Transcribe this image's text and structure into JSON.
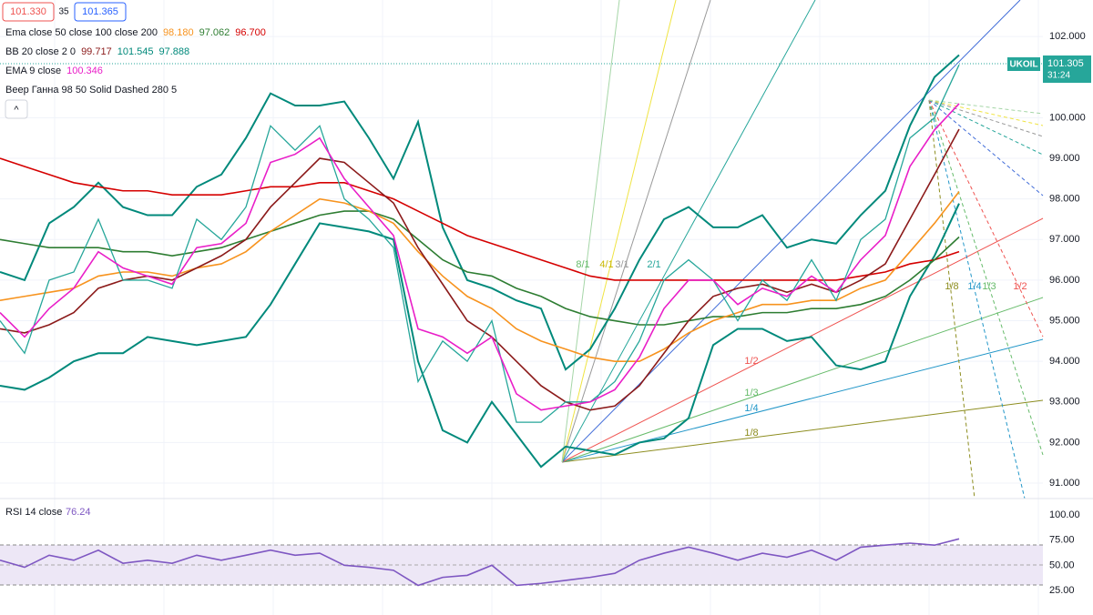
{
  "header": {
    "bid": "101.330",
    "spread": "35",
    "ask": "101.365"
  },
  "indicator_legend": [
    {
      "label": "Ema close 50 close 100 close 200",
      "readings": [
        "98.180",
        "97.062",
        "96.700"
      ],
      "colors": [
        "#f7931e",
        "#2e7d32",
        "#d50000"
      ]
    },
    {
      "label": "BB 20 close 2 0",
      "readings": [
        "99.717",
        "101.545",
        "97.888"
      ],
      "colors": [
        "#8b1a1a",
        "#00897b",
        "#00897b"
      ]
    },
    {
      "label": "EMA 9 close",
      "readings": [
        "100.346"
      ],
      "colors": [
        "#e91ec8"
      ]
    },
    {
      "label": "Веер Ганна 98 50 Solid Dashed 280 5",
      "readings": [],
      "colors": []
    }
  ],
  "price_tag": {
    "symbol": "UKOIL",
    "price": "101.305",
    "countdown": "31:24"
  },
  "gann_fan": {
    "labels": [
      "1/8",
      "1/4",
      "1/3",
      "1/2",
      "2/1",
      "3/1",
      "4/1",
      "8/1"
    ],
    "second_labels": [
      "1/8",
      "1/4",
      "1/3",
      "1/2"
    ]
  },
  "chart_data": [
    {
      "type": "line",
      "categories": [
        null,
        null,
        null,
        null,
        null,
        null,
        null,
        null,
        null,
        null,
        null,
        null,
        null,
        null,
        null,
        null,
        null,
        null,
        null,
        null,
        null,
        null,
        null,
        null,
        null,
        null,
        null,
        null,
        null,
        null,
        null,
        null,
        null,
        null,
        null,
        null,
        null,
        null,
        null,
        null
      ],
      "ylim": [
        90.62,
        102.9
      ],
      "grid": true,
      "yticks": [
        {
          "value": 91,
          "label": "91.000"
        },
        {
          "value": 92,
          "label": "92.000"
        },
        {
          "value": 93,
          "label": "93.000"
        },
        {
          "value": 94,
          "label": "94.000"
        },
        {
          "value": 95,
          "label": "95.000"
        },
        {
          "value": 96,
          "label": "96.000"
        },
        {
          "value": 97,
          "label": "97.000"
        },
        {
          "value": 98,
          "label": "98.000"
        },
        {
          "value": 99,
          "label": "99.000"
        },
        {
          "value": 100,
          "label": "100.000"
        },
        {
          "value": 102,
          "label": "102.000"
        }
      ],
      "series": [
        {
          "name": "BB upper",
          "color": "#00897b",
          "values": [
            96.2,
            96.0,
            97.4,
            97.8,
            98.4,
            97.8,
            97.6,
            97.6,
            98.3,
            98.6,
            99.5,
            100.6,
            100.3,
            100.3,
            100.4,
            99.5,
            98.5,
            99.9,
            97.3,
            96.0,
            95.8,
            95.5,
            95.3,
            93.8,
            94.3,
            95.3,
            96.5,
            97.5,
            97.8,
            97.3,
            97.3,
            97.6,
            96.8,
            97.0,
            96.9,
            97.6,
            98.2,
            99.8,
            101.0,
            101.545
          ]
        },
        {
          "name": "BB lower",
          "color": "#00897b",
          "values": [
            93.4,
            93.3,
            93.6,
            94.0,
            94.2,
            94.2,
            94.6,
            94.5,
            94.4,
            94.5,
            94.6,
            95.4,
            96.4,
            97.4,
            97.3,
            97.2,
            97.0,
            94.0,
            92.3,
            92.0,
            93.0,
            92.2,
            91.4,
            91.9,
            91.8,
            91.7,
            92.0,
            92.1,
            92.6,
            94.4,
            94.8,
            94.8,
            94.5,
            94.6,
            93.9,
            93.8,
            94.0,
            95.6,
            96.6,
            97.888
          ]
        },
        {
          "name": "EMA 200",
          "color": "#d50000",
          "values": [
            99.0,
            98.8,
            98.6,
            98.4,
            98.3,
            98.2,
            98.2,
            98.1,
            98.1,
            98.1,
            98.2,
            98.3,
            98.3,
            98.4,
            98.4,
            98.2,
            98.0,
            97.7,
            97.4,
            97.1,
            96.9,
            96.7,
            96.5,
            96.3,
            96.1,
            96.0,
            96.0,
            96.0,
            96.0,
            96.0,
            96.0,
            96.0,
            96.0,
            96.0,
            96.0,
            96.1,
            96.2,
            96.4,
            96.5,
            96.7
          ]
        },
        {
          "name": "EMA 100",
          "color": "#2e7d32",
          "values": [
            97.0,
            96.9,
            96.8,
            96.8,
            96.8,
            96.7,
            96.7,
            96.6,
            96.7,
            96.8,
            97.0,
            97.2,
            97.4,
            97.6,
            97.7,
            97.7,
            97.5,
            97.0,
            96.5,
            96.2,
            96.1,
            95.8,
            95.6,
            95.3,
            95.1,
            95.0,
            94.9,
            94.9,
            95.0,
            95.1,
            95.1,
            95.2,
            95.2,
            95.3,
            95.3,
            95.4,
            95.6,
            96.0,
            96.5,
            97.062
          ]
        },
        {
          "name": "EMA 50",
          "color": "#f7931e",
          "values": [
            95.5,
            95.6,
            95.7,
            95.8,
            96.1,
            96.2,
            96.2,
            96.1,
            96.3,
            96.4,
            96.7,
            97.2,
            97.6,
            98.0,
            97.9,
            97.7,
            97.4,
            96.7,
            96.1,
            95.6,
            95.3,
            94.8,
            94.5,
            94.3,
            94.1,
            94.0,
            94.0,
            94.3,
            94.7,
            95.0,
            95.2,
            95.4,
            95.4,
            95.5,
            95.5,
            95.8,
            96.0,
            96.7,
            97.4,
            98.18
          ]
        },
        {
          "name": "BB basis",
          "color": "#8b1a1a",
          "values": [
            94.8,
            94.7,
            94.9,
            95.2,
            95.8,
            96.0,
            96.1,
            96.0,
            96.3,
            96.6,
            97.0,
            97.8,
            98.4,
            99.0,
            98.9,
            98.4,
            97.9,
            96.8,
            95.9,
            95.0,
            94.6,
            94.0,
            93.4,
            93.0,
            92.8,
            92.9,
            93.4,
            94.2,
            95.0,
            95.6,
            95.8,
            95.9,
            95.7,
            95.9,
            95.7,
            96.0,
            96.4,
            97.5,
            98.6,
            99.717
          ]
        },
        {
          "name": "Close",
          "color": "#26a69a",
          "values": [
            95.0,
            94.2,
            96.0,
            96.2,
            97.5,
            96.0,
            96.0,
            95.8,
            97.5,
            97.0,
            97.8,
            99.8,
            99.2,
            99.8,
            98.0,
            97.5,
            96.8,
            93.5,
            94.5,
            94.0,
            95.0,
            92.5,
            92.5,
            93.0,
            93.0,
            93.5,
            94.5,
            96.0,
            96.5,
            96.0,
            95.0,
            96.0,
            95.5,
            96.5,
            95.5,
            97.0,
            97.5,
            99.5,
            100.0,
            101.305
          ]
        },
        {
          "name": "EMA 9",
          "color": "#e91ec8",
          "values": [
            95.2,
            94.6,
            95.3,
            95.8,
            96.7,
            96.3,
            96.1,
            95.9,
            96.8,
            96.9,
            97.4,
            98.9,
            99.1,
            99.5,
            98.5,
            97.8,
            97.1,
            94.8,
            94.6,
            94.2,
            94.6,
            93.2,
            92.8,
            92.9,
            93.0,
            93.3,
            94.1,
            95.3,
            96.0,
            96.0,
            95.4,
            95.8,
            95.6,
            96.1,
            95.7,
            96.5,
            97.1,
            98.8,
            99.7,
            100.346
          ]
        }
      ]
    },
    {
      "type": "line",
      "title": "RSI 14 close",
      "value_label": "76.24",
      "categories": [
        null,
        null,
        null,
        null,
        null,
        null,
        null,
        null,
        null,
        null,
        null,
        null,
        null,
        null,
        null,
        null,
        null,
        null,
        null,
        null,
        null,
        null,
        null,
        null,
        null,
        null,
        null,
        null,
        null,
        null,
        null,
        null,
        null,
        null,
        null,
        null,
        null,
        null,
        null,
        null
      ],
      "ylim": [
        0.6,
        116.3
      ],
      "grid": false,
      "yticks": [
        {
          "value": 25,
          "label": "25.00"
        },
        {
          "value": 50,
          "label": "50.00"
        },
        {
          "value": 75,
          "label": "75.00"
        },
        {
          "value": 100,
          "label": "100.00"
        }
      ],
      "series": [
        {
          "name": "RSI",
          "color": "#7e57c2",
          "values": [
            55,
            48,
            60,
            55,
            65,
            52,
            55,
            52,
            60,
            55,
            60,
            65,
            60,
            62,
            50,
            48,
            45,
            30,
            38,
            40,
            50,
            30,
            32,
            35,
            38,
            42,
            55,
            62,
            68,
            62,
            55,
            62,
            58,
            65,
            55,
            68,
            70,
            72,
            70,
            76.24
          ]
        }
      ]
    }
  ]
}
